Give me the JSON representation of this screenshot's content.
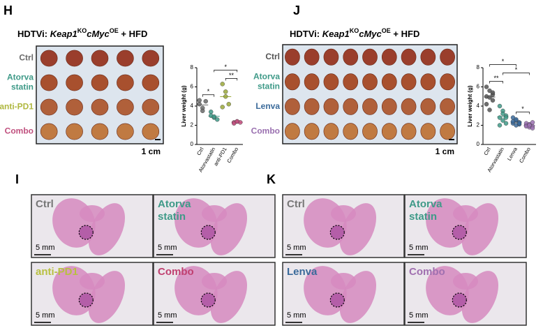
{
  "panels": {
    "H": {
      "letter": "H",
      "title": {
        "prefix": "HDTVi: ",
        "gene1": "Keap1",
        "sup1": "KO",
        "gene2": "cMyc",
        "sup2": "OE",
        "suffix": " + HFD"
      },
      "rows": [
        [
          "Ctrl"
        ],
        [
          "Atorva",
          "statin"
        ],
        [
          "anti-PD1"
        ],
        [
          "Combo"
        ]
      ],
      "scale": "1 cm"
    },
    "J": {
      "letter": "J",
      "title": {
        "prefix": "HDTVi: ",
        "gene1": "Keap1",
        "sup1": "KO",
        "gene2": "cMyc",
        "sup2": "OE",
        "suffix": " + HFD"
      },
      "rows": [
        [
          "Ctrl"
        ],
        [
          "Atorva",
          "statin"
        ],
        [
          "Lenva"
        ],
        [
          "Combo"
        ]
      ],
      "scale": "1 cm"
    },
    "I": {
      "letter": "I",
      "boxes": [
        {
          "label": [
            "Ctrl"
          ],
          "scale": "5 mm"
        },
        {
          "label": [
            "Atorva",
            "statin"
          ],
          "scale": "5 mm"
        },
        {
          "label": [
            "anti-PD1"
          ],
          "scale": "5 mm"
        },
        {
          "label": [
            "Combo"
          ],
          "scale": "5 mm"
        }
      ]
    },
    "K": {
      "letter": "K",
      "boxes": [
        {
          "label": [
            "Ctrl"
          ],
          "scale": "5 mm"
        },
        {
          "label": [
            "Atorva",
            "statin"
          ],
          "scale": "5 mm"
        },
        {
          "label": [
            "Lenva"
          ],
          "scale": "5 mm"
        },
        {
          "label": [
            "Combo"
          ],
          "scale": "5 mm"
        }
      ]
    }
  },
  "chart_data": [
    {
      "type": "strip",
      "ylabel": "Liver weight (g)",
      "categories": [
        "Ctrl",
        "Atorvastatin",
        "anti-PD1",
        "Combo"
      ],
      "colors": [
        "#6a6a6a",
        "#3f9a88",
        "#9aa83a",
        "#c0507e"
      ],
      "values": [
        [
          4.2,
          3.8,
          4.5,
          4.6,
          3.5
        ],
        [
          3.4,
          2.8,
          2.6,
          3.0,
          2.9
        ],
        [
          6.3,
          5.5,
          4.2,
          3.9,
          5.0
        ],
        [
          2.3,
          2.4,
          2.3,
          2.2,
          2.4
        ]
      ],
      "ylim": [
        0,
        8
      ],
      "yticks": [
        0,
        2,
        4,
        6,
        8
      ],
      "annotations": [
        {
          "between": [
            "Ctrl",
            "Atorvastatin"
          ],
          "label": "*"
        },
        {
          "between": [
            "anti-PD1",
            "Combo"
          ],
          "label": "**"
        },
        {
          "between": [
            "Atorvastatin",
            "Combo"
          ],
          "label": "*"
        }
      ]
    },
    {
      "type": "strip",
      "ylabel": "Liver weight (g)",
      "categories": [
        "Ctrl",
        "Atorvastatin",
        "Lenva",
        "Combo"
      ],
      "colors": [
        "#555555",
        "#3f9a88",
        "#3a6a9a",
        "#9a70b0"
      ],
      "values": [
        [
          6.0,
          5.6,
          5.2,
          5.0,
          4.9,
          4.6,
          4.2,
          3.6,
          5.4
        ],
        [
          4.0,
          3.5,
          3.0,
          2.8,
          2.5,
          2.2,
          2.0,
          3.2,
          2.8
        ],
        [
          2.8,
          2.5,
          2.3,
          2.2,
          2.0,
          2.1,
          2.4,
          2.6,
          2.2
        ],
        [
          2.0,
          1.8,
          1.9,
          2.2,
          2.1,
          1.7,
          1.9,
          2.0,
          2.3
        ]
      ],
      "ylim": [
        0,
        8
      ],
      "yticks": [
        0,
        2,
        4,
        6,
        8
      ],
      "annotations": [
        {
          "between": [
            "Ctrl",
            "Atorvastatin"
          ],
          "label": "**"
        },
        {
          "between": [
            "Atorvastatin",
            "Combo"
          ],
          "label": "*"
        },
        {
          "between": [
            "Lenva",
            "Combo"
          ],
          "label": "*"
        },
        {
          "between": [
            "Ctrl",
            "Lenva"
          ],
          "label": "*"
        }
      ]
    }
  ]
}
